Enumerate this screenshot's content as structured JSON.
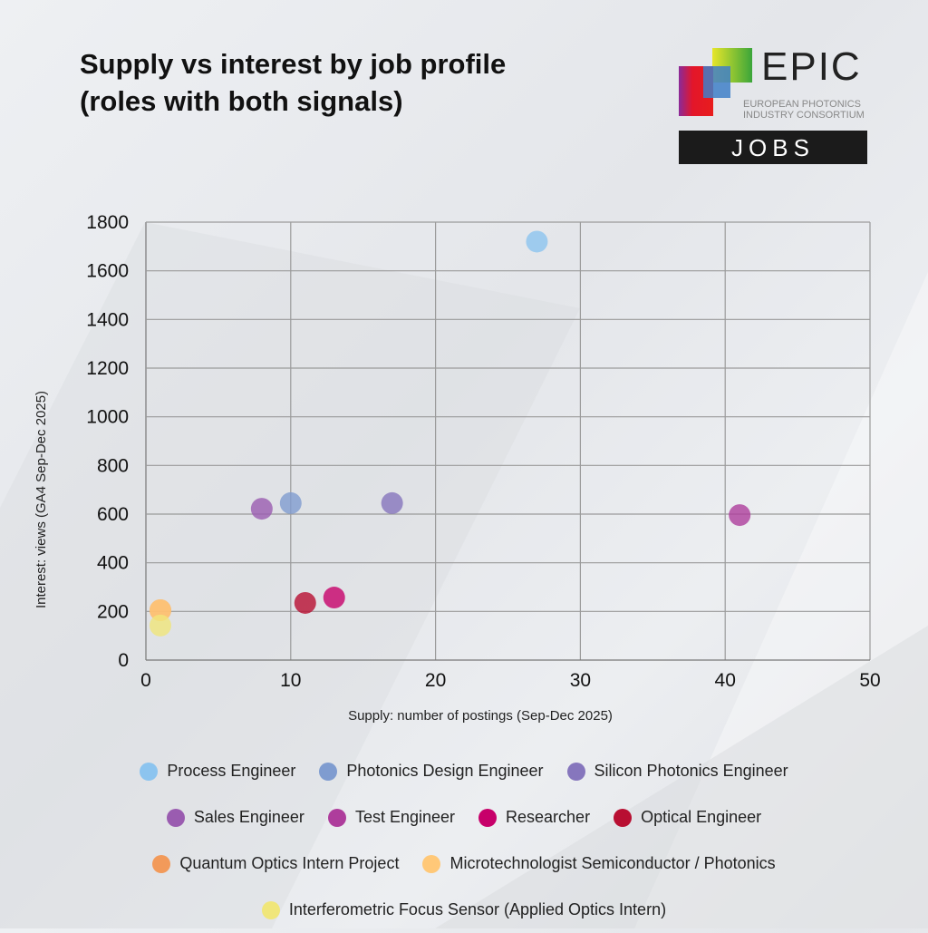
{
  "title": "Supply vs interest by job profile (roles with both signals)",
  "logo": {
    "brand": "EPIC",
    "line1": "EUROPEAN PHOTONICS",
    "line2": "INDUSTRY CONSORTIUM",
    "badge": "JOBS"
  },
  "chart_data": {
    "type": "scatter",
    "xlabel": "Supply: number of postings (Sep-Dec 2025)",
    "ylabel": "Interest: views (GA4 Sep-Dec 2025)",
    "xlim": [
      0,
      50
    ],
    "ylim": [
      0,
      1800
    ],
    "xticks": [
      0,
      10,
      20,
      30,
      40,
      50
    ],
    "yticks": [
      0,
      200,
      400,
      600,
      800,
      1000,
      1200,
      1400,
      1600,
      1800
    ],
    "grid": true,
    "legend_placement": "bottom",
    "series": [
      {
        "name": "Process Engineer",
        "color": "#8cc4ef",
        "x": 27,
        "y": 1720
      },
      {
        "name": "Photonics Design Engineer",
        "color": "#7f9cd0",
        "x": 10,
        "y": 645
      },
      {
        "name": "Silicon Photonics Engineer",
        "color": "#8676bd",
        "x": 17,
        "y": 645
      },
      {
        "name": "Sales Engineer",
        "color": "#9a5cb0",
        "x": 8,
        "y": 622
      },
      {
        "name": "Test Engineer",
        "color": "#ae3d9c",
        "x": 41,
        "y": 596
      },
      {
        "name": "Researcher",
        "color": "#c7006a",
        "x": 13,
        "y": 257
      },
      {
        "name": "Optical Engineer",
        "color": "#b80f32",
        "x": 11,
        "y": 235
      },
      {
        "name": "Quantum Optics Intern Project",
        "color": "#f29a5a",
        "x": 1,
        "y": 205
      },
      {
        "name": "Microtechnologist Semiconductor / Photonics",
        "color": "#ffc878",
        "x": 1,
        "y": 205
      },
      {
        "name": "Interferometric Focus Sensor (Applied Optics Intern)",
        "color": "#f0e67a",
        "x": 1,
        "y": 142
      }
    ],
    "legend_rows": [
      [
        0,
        1,
        2
      ],
      [
        3,
        4,
        5,
        6
      ],
      [
        7,
        8
      ],
      [
        9
      ]
    ]
  }
}
